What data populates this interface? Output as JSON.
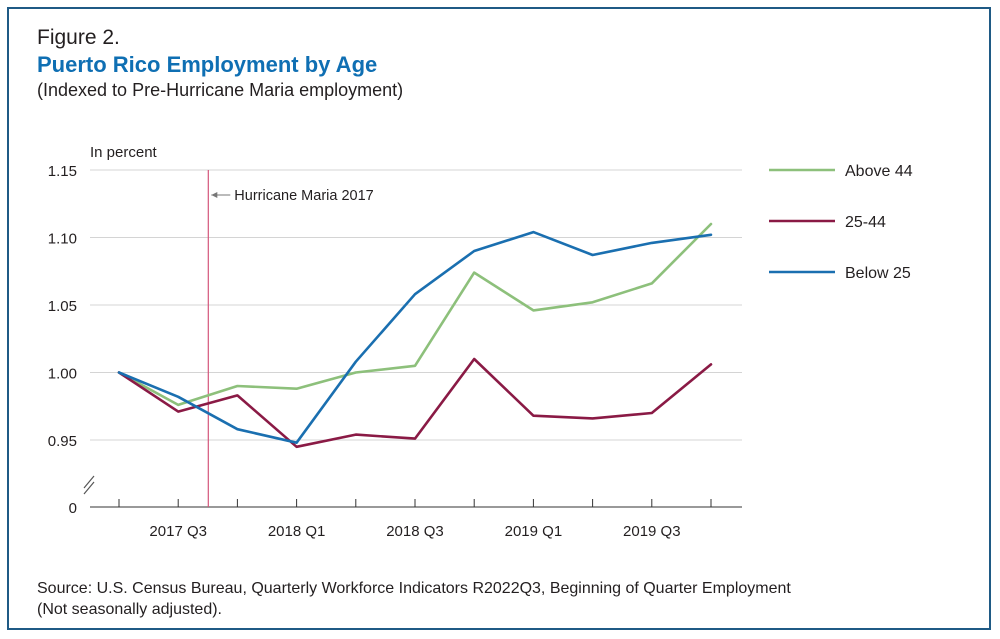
{
  "figure": {
    "number": "Figure 2.",
    "title": "Puerto Rico Employment by Age",
    "subtitle": "(Indexed to Pre-Hurricane Maria employment)",
    "source_line1": "Source: U.S. Census Bureau, Quarterly Workforce Indicators R2022Q3, Beginning of Quarter Employment",
    "source_line2": "(Not seasonally adjusted)."
  },
  "chart_data": {
    "type": "line",
    "ylabel": "In percent",
    "xlabel": "",
    "x": [
      "2017 Q2",
      "2017 Q3",
      "2017 Q4",
      "2018 Q1",
      "2018 Q2",
      "2018 Q3",
      "2018 Q4",
      "2019 Q1",
      "2019 Q2",
      "2019 Q3",
      "2019 Q4"
    ],
    "x_tick_labels": [
      "2017 Q3",
      "2018 Q1",
      "2018 Q3",
      "2019 Q1",
      "2019 Q3"
    ],
    "x_tick_label_positions": [
      "2017 Q3",
      "2018 Q1",
      "2018 Q3",
      "2019 Q1",
      "2019 Q3"
    ],
    "y_ticks": [
      "0",
      "0.95",
      "1.00",
      "1.05",
      "1.10",
      "1.15"
    ],
    "ylim": [
      0.95,
      1.15
    ],
    "y_axis_break": true,
    "grid": true,
    "legend_placement": "right",
    "annotation": {
      "text": "Hurricane Maria 2017",
      "x_between": [
        "2017 Q3",
        "2017 Q4"
      ],
      "color": "#d4557a"
    },
    "series": [
      {
        "name": "Above 44",
        "color": "#8dc07b",
        "values": [
          1.0,
          0.976,
          0.99,
          0.988,
          1.0,
          1.005,
          1.074,
          1.046,
          1.052,
          1.066,
          1.11
        ]
      },
      {
        "name": "25-44",
        "color": "#8a1a45",
        "values": [
          1.0,
          0.971,
          0.983,
          0.945,
          0.954,
          0.951,
          1.01,
          0.968,
          0.966,
          0.97,
          1.006
        ]
      },
      {
        "name": "Below 25",
        "color": "#1a6fb0",
        "values": [
          1.0,
          0.982,
          0.958,
          0.948,
          1.008,
          1.058,
          1.09,
          1.104,
          1.087,
          1.096,
          1.102
        ]
      }
    ]
  }
}
